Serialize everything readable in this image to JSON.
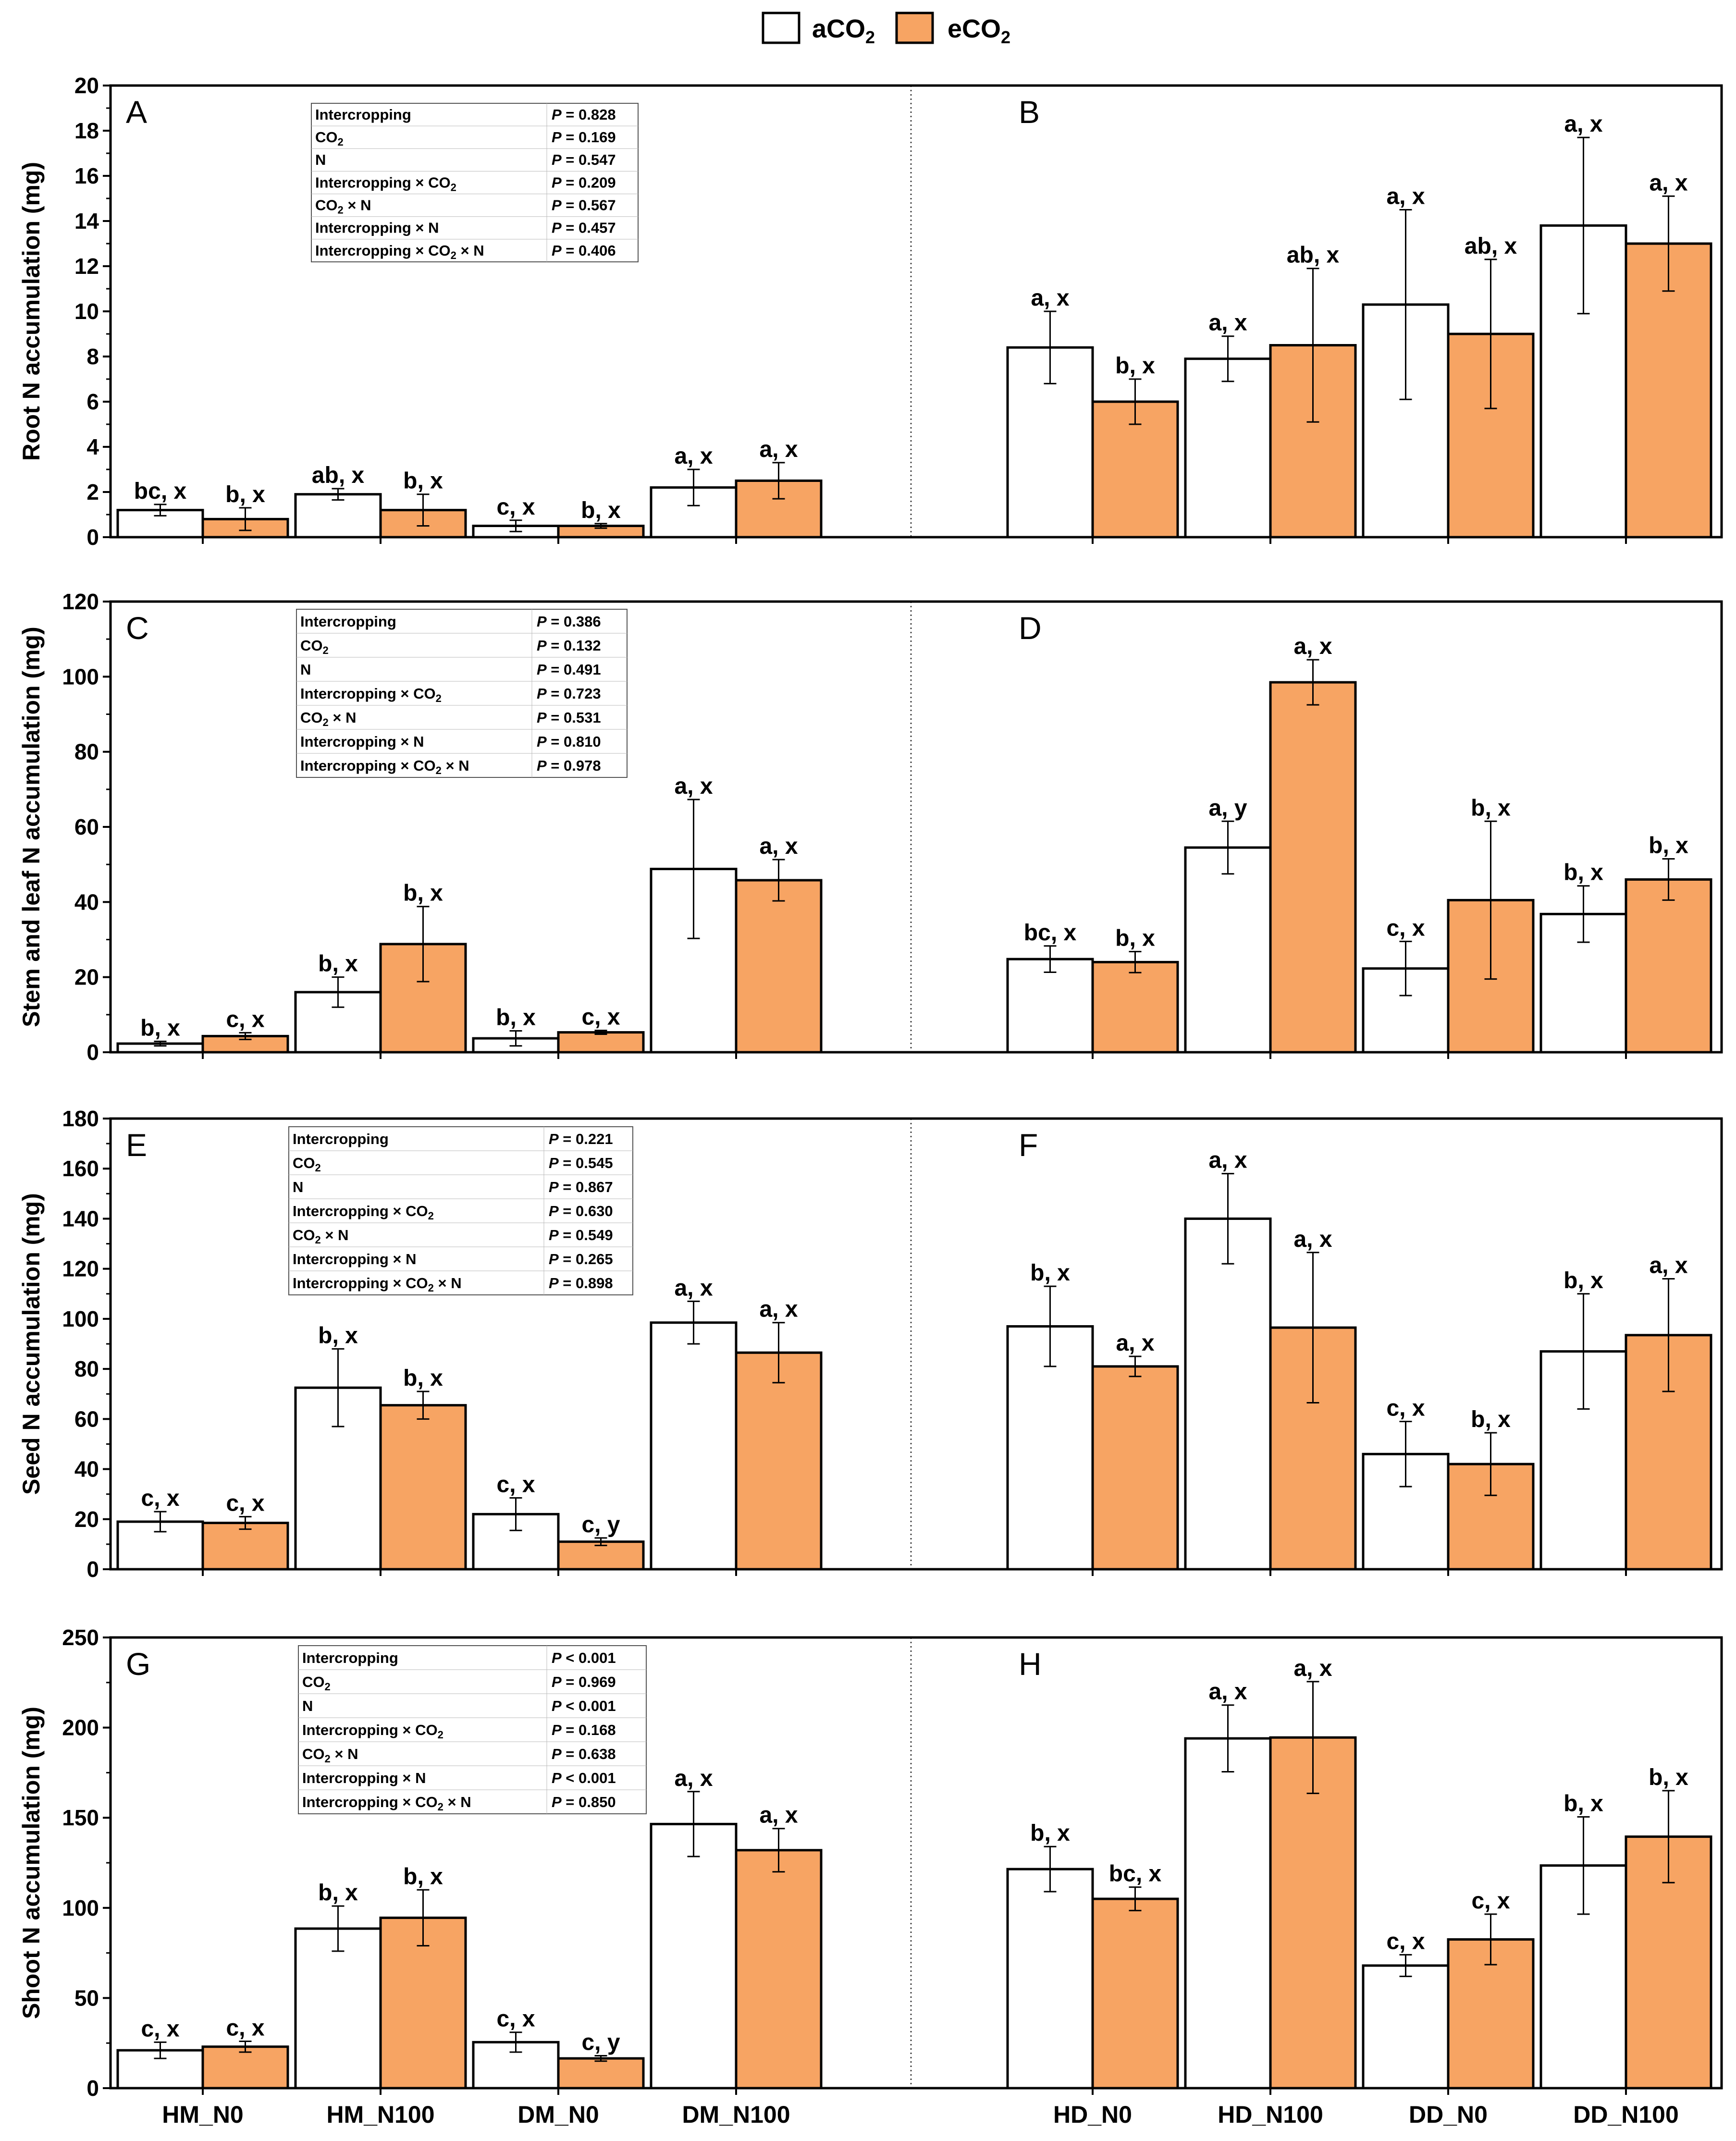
{
  "legend": {
    "series": [
      {
        "name": "aCO2",
        "main": "aCO",
        "sub": "2",
        "color": "#ffffff"
      },
      {
        "name": "eCO2",
        "main": "eCO",
        "sub": "2",
        "color": "#f7a463"
      }
    ]
  },
  "x_ticks_left": [
    "HM_N0",
    "HM_N100",
    "DM_N0",
    "DM_N100"
  ],
  "x_ticks_right": [
    "HD_N0",
    "HD_N100",
    "DD_N0",
    "DD_N100"
  ],
  "stats_row_labels": [
    [
      {
        "t": "Intercropping"
      }
    ],
    [
      {
        "t": "CO"
      },
      {
        "t": "2",
        "sub": true
      }
    ],
    [
      {
        "t": "N"
      }
    ],
    [
      {
        "t": "Intercropping × CO"
      },
      {
        "t": "2",
        "sub": true
      }
    ],
    [
      {
        "t": "CO"
      },
      {
        "t": "2",
        "sub": true
      },
      {
        "t": " × N"
      }
    ],
    [
      {
        "t": "Intercropping × N"
      }
    ],
    [
      {
        "t": "Intercropping × CO"
      },
      {
        "t": "2",
        "sub": true
      },
      {
        "t": " × N"
      }
    ]
  ],
  "chart_data": [
    {
      "type": "bar",
      "ylabel": "Root N accumulation (mg)",
      "ylim": [
        0,
        20
      ],
      "yticks": [
        0,
        2,
        4,
        6,
        8,
        10,
        12,
        14,
        16,
        18,
        20
      ],
      "panel_left": "A",
      "panel_right": "B",
      "stats": [
        "= 0.828",
        "= 0.169",
        "= 0.547",
        "= 0.209",
        "= 0.567",
        "= 0.457",
        "= 0.406"
      ],
      "left": {
        "categories": [
          "HM_N0",
          "HM_N100",
          "DM_N0",
          "DM_N100"
        ],
        "aCO2": {
          "values": [
            1.2,
            1.9,
            0.5,
            2.2
          ],
          "errors": [
            0.25,
            0.25,
            0.25,
            0.8
          ],
          "letters": [
            "bc, x",
            "ab, x",
            "c, x",
            "a, x"
          ]
        },
        "eCO2": {
          "values": [
            0.8,
            1.2,
            0.5,
            2.5
          ],
          "errors": [
            0.5,
            0.7,
            0.1,
            0.8
          ],
          "letters": [
            "b, x",
            "b, x",
            "b, x",
            "a, x"
          ]
        }
      },
      "right": {
        "categories": [
          "HD_N0",
          "HD_N100",
          "DD_N0",
          "DD_N100"
        ],
        "aCO2": {
          "values": [
            8.4,
            7.9,
            10.3,
            13.8
          ],
          "errors": [
            1.6,
            1.0,
            4.2,
            3.9
          ],
          "letters": [
            "a, x",
            "a, x",
            "a, x",
            "a, x"
          ]
        },
        "eCO2": {
          "values": [
            6.0,
            8.5,
            9.0,
            13.0
          ],
          "errors": [
            1.0,
            3.4,
            3.3,
            2.1
          ],
          "letters": [
            "b, x",
            "ab, x",
            "ab, x",
            "a, x"
          ]
        }
      }
    },
    {
      "type": "bar",
      "ylabel": "Stem and leaf N accumulation (mg)",
      "ylim": [
        0,
        120
      ],
      "yticks": [
        0,
        20,
        40,
        60,
        80,
        100,
        120
      ],
      "panel_left": "C",
      "panel_right": "D",
      "stats": [
        "= 0.386",
        "= 0.132",
        "= 0.491",
        "= 0.723",
        "= 0.531",
        "= 0.810",
        "= 0.978"
      ],
      "left": {
        "categories": [
          "HM_N0",
          "HM_N100",
          "DM_N0",
          "DM_N100"
        ],
        "aCO2": {
          "values": [
            2.3,
            16.0,
            3.7,
            48.8
          ],
          "errors": [
            0.6,
            4.0,
            2.0,
            18.5
          ],
          "letters": [
            "b, x",
            "b, x",
            "b, x",
            "a, x"
          ]
        },
        "eCO2": {
          "values": [
            4.3,
            28.8,
            5.3,
            45.8
          ],
          "errors": [
            0.9,
            10.0,
            0.5,
            5.5
          ],
          "letters": [
            "c, x",
            "b, x",
            "c, x",
            "a, x"
          ]
        }
      },
      "right": {
        "categories": [
          "HD_N0",
          "HD_N100",
          "DD_N0",
          "DD_N100"
        ],
        "aCO2": {
          "values": [
            24.8,
            54.5,
            22.3,
            36.8
          ],
          "errors": [
            3.5,
            7.0,
            7.2,
            7.5
          ],
          "letters": [
            "bc, x",
            "a, y",
            "c, x",
            "b, x"
          ]
        },
        "eCO2": {
          "values": [
            24.0,
            98.5,
            40.5,
            46.0
          ],
          "errors": [
            2.8,
            6.0,
            21.0,
            5.5
          ],
          "letters": [
            "b, x",
            "a, x",
            "b, x",
            "b, x"
          ]
        }
      }
    },
    {
      "type": "bar",
      "ylabel": "Seed N accumulation (mg)",
      "ylim": [
        0,
        180
      ],
      "yticks": [
        0,
        20,
        40,
        60,
        80,
        100,
        120,
        140,
        160,
        180
      ],
      "panel_left": "E",
      "panel_right": "F",
      "stats": [
        "= 0.221",
        "= 0.545",
        "= 0.867",
        "= 0.630",
        "= 0.549",
        "= 0.265",
        "= 0.898"
      ],
      "left": {
        "categories": [
          "HM_N0",
          "HM_N100",
          "DM_N0",
          "DM_N100"
        ],
        "aCO2": {
          "values": [
            19.0,
            72.5,
            22.0,
            98.5
          ],
          "errors": [
            4.0,
            15.5,
            6.5,
            8.5
          ],
          "letters": [
            "c, x",
            "b, x",
            "c, x",
            "a, x"
          ]
        },
        "eCO2": {
          "values": [
            18.5,
            65.5,
            11.0,
            86.5
          ],
          "errors": [
            2.5,
            5.5,
            1.5,
            12.0
          ],
          "letters": [
            "c, x",
            "b, x",
            "c, y",
            "a, x"
          ]
        }
      },
      "right": {
        "categories": [
          "HD_N0",
          "HD_N100",
          "DD_N0",
          "DD_N100"
        ],
        "aCO2": {
          "values": [
            97.0,
            140.0,
            46.0,
            87.0
          ],
          "errors": [
            16.0,
            18.0,
            13.0,
            23.0
          ],
          "letters": [
            "b, x",
            "a, x",
            "c, x",
            "b, x"
          ]
        },
        "eCO2": {
          "values": [
            81.0,
            96.5,
            42.0,
            93.5
          ],
          "errors": [
            4.0,
            30.0,
            12.5,
            22.5
          ],
          "letters": [
            "a, x",
            "a, x",
            "b, x",
            "a, x"
          ]
        }
      }
    },
    {
      "type": "bar",
      "ylabel": "Shoot N accumulation (mg)",
      "ylim": [
        0,
        250
      ],
      "yticks": [
        0,
        50,
        100,
        150,
        200,
        250
      ],
      "panel_left": "G",
      "panel_right": "H",
      "stats": [
        "< 0.001",
        "= 0.969",
        "< 0.001",
        "= 0.168",
        "= 0.638",
        "< 0.001",
        "= 0.850"
      ],
      "left": {
        "categories": [
          "HM_N0",
          "HM_N100",
          "DM_N0",
          "DM_N100"
        ],
        "aCO2": {
          "values": [
            21.0,
            88.5,
            25.5,
            146.5
          ],
          "errors": [
            4.5,
            12.5,
            5.5,
            18.0
          ],
          "letters": [
            "c, x",
            "b, x",
            "c, x",
            "a, x"
          ]
        },
        "eCO2": {
          "values": [
            23.0,
            94.5,
            16.5,
            132.0
          ],
          "errors": [
            3.0,
            15.5,
            1.5,
            12.0
          ],
          "letters": [
            "c, x",
            "b, x",
            "c, y",
            "a, x"
          ]
        }
      },
      "right": {
        "categories": [
          "HD_N0",
          "HD_N100",
          "DD_N0",
          "DD_N100"
        ],
        "aCO2": {
          "values": [
            121.5,
            194.0,
            68.0,
            123.5
          ],
          "errors": [
            12.5,
            18.5,
            6.0,
            27.0
          ],
          "letters": [
            "b, x",
            "a, x",
            "c, x",
            "b, x"
          ]
        },
        "eCO2": {
          "values": [
            105.0,
            194.5,
            82.5,
            139.5
          ],
          "errors": [
            6.5,
            31.0,
            14.0,
            25.5
          ],
          "letters": [
            "bc, x",
            "a, x",
            "c, x",
            "b, x"
          ]
        }
      }
    }
  ]
}
